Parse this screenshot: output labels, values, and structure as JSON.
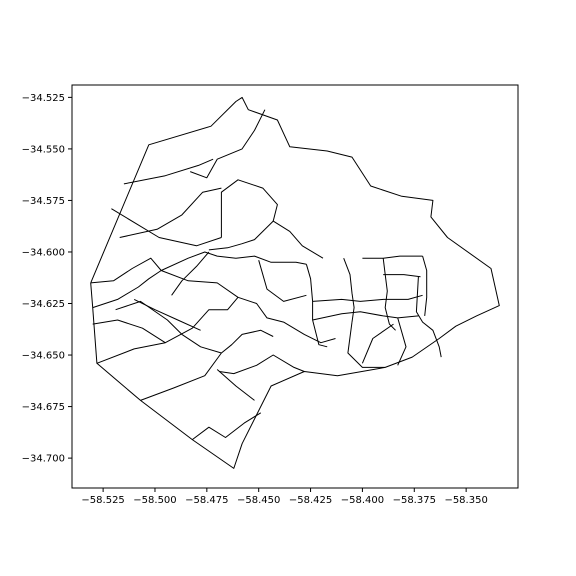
{
  "figure": {
    "background": "#ffffff",
    "stroke_color": "#000000"
  },
  "chart_data": {
    "type": "map",
    "title": "",
    "xlabel": "",
    "ylabel": "",
    "xlim": [
      -58.54,
      -58.325
    ],
    "ylim": [
      -34.7145,
      -34.519
    ],
    "grid": false,
    "x_ticks": [
      {
        "value": -58.525,
        "label": "−58.525"
      },
      {
        "value": -58.5,
        "label": "−58.500"
      },
      {
        "value": -58.475,
        "label": "−58.475"
      },
      {
        "value": -58.45,
        "label": "−58.450"
      },
      {
        "value": -58.425,
        "label": "−58.425"
      },
      {
        "value": -58.4,
        "label": "−58.400"
      },
      {
        "value": -58.375,
        "label": "−58.375"
      },
      {
        "value": -58.35,
        "label": "−58.350"
      }
    ],
    "y_ticks": [
      {
        "value": -34.525,
        "label": "−34.525"
      },
      {
        "value": -34.55,
        "label": "−34.550"
      },
      {
        "value": -34.575,
        "label": "−34.575"
      },
      {
        "value": -34.6,
        "label": "−34.600"
      },
      {
        "value": -34.625,
        "label": "−34.625"
      },
      {
        "value": -34.65,
        "label": "−34.650"
      },
      {
        "value": -34.675,
        "label": "−34.675"
      },
      {
        "value": -34.7,
        "label": "−34.700"
      }
    ],
    "outline": [
      [
        -58.531,
        -34.615
      ],
      [
        -58.503,
        -34.548
      ],
      [
        -58.473,
        -34.539
      ],
      [
        -58.461,
        -34.527
      ],
      [
        -58.458,
        -34.525
      ],
      [
        -58.455,
        -34.531
      ],
      [
        -58.441,
        -34.536
      ],
      [
        -58.435,
        -34.549
      ],
      [
        -58.417,
        -34.551
      ],
      [
        -58.405,
        -34.554
      ],
      [
        -58.396,
        -34.568
      ],
      [
        -58.381,
        -34.573
      ],
      [
        -58.366,
        -34.575
      ],
      [
        -58.367,
        -34.583
      ],
      [
        -58.359,
        -34.593
      ],
      [
        -58.338,
        -34.608
      ],
      [
        -58.334,
        -34.626
      ],
      [
        -58.345,
        -34.631
      ],
      [
        -58.355,
        -34.636
      ],
      [
        -58.363,
        -34.642
      ],
      [
        -58.376,
        -34.651
      ],
      [
        -58.389,
        -34.656
      ],
      [
        -58.412,
        -34.66
      ],
      [
        -58.428,
        -34.658
      ],
      [
        -58.444,
        -34.665
      ],
      [
        -58.458,
        -34.693
      ],
      [
        -58.462,
        -34.705
      ],
      [
        -58.482,
        -34.691
      ],
      [
        -58.507,
        -34.672
      ],
      [
        -58.528,
        -34.654
      ],
      [
        -58.53,
        -34.627
      ],
      [
        -58.531,
        -34.615
      ]
    ],
    "boundaries": [
      [
        [
          -58.483,
          -34.561
        ],
        [
          -58.475,
          -34.564
        ],
        [
          -58.47,
          -34.555
        ],
        [
          -58.458,
          -34.55
        ],
        [
          -58.452,
          -34.541
        ],
        [
          -58.447,
          -34.531
        ]
      ],
      [
        [
          -58.515,
          -34.567
        ],
        [
          -58.495,
          -34.563
        ],
        [
          -58.479,
          -34.558
        ],
        [
          -58.472,
          -34.555
        ]
      ],
      [
        [
          -58.521,
          -34.579
        ],
        [
          -58.498,
          -34.593
        ],
        [
          -58.48,
          -34.597
        ],
        [
          -58.468,
          -34.593
        ]
      ],
      [
        [
          -58.517,
          -34.593
        ],
        [
          -58.499,
          -34.589
        ],
        [
          -58.487,
          -34.582
        ],
        [
          -58.477,
          -34.571
        ],
        [
          -58.468,
          -34.569
        ]
      ],
      [
        [
          -58.468,
          -34.593
        ],
        [
          -58.468,
          -34.571
        ],
        [
          -58.46,
          -34.565
        ],
        [
          -58.448,
          -34.569
        ],
        [
          -58.441,
          -34.577
        ],
        [
          -58.443,
          -34.585
        ]
      ],
      [
        [
          -58.474,
          -34.599
        ],
        [
          -58.465,
          -34.598
        ],
        [
          -58.458,
          -34.596
        ],
        [
          -58.452,
          -34.594
        ],
        [
          -58.443,
          -34.585
        ],
        [
          -58.435,
          -34.59
        ],
        [
          -58.429,
          -34.597
        ],
        [
          -58.419,
          -34.603
        ]
      ],
      [
        [
          -58.497,
          -34.609
        ],
        [
          -58.484,
          -34.603
        ],
        [
          -58.476,
          -34.6
        ],
        [
          -58.47,
          -34.602
        ],
        [
          -58.461,
          -34.603
        ],
        [
          -58.452,
          -34.602
        ],
        [
          -58.444,
          -34.605
        ],
        [
          -58.432,
          -34.605
        ],
        [
          -58.427,
          -34.606
        ]
      ],
      [
        [
          -58.531,
          -34.615
        ],
        [
          -58.52,
          -34.614
        ],
        [
          -58.511,
          -34.608
        ],
        [
          -58.502,
          -34.603
        ],
        [
          -58.497,
          -34.609
        ]
      ],
      [
        [
          -58.53,
          -34.627
        ],
        [
          -58.518,
          -34.623
        ],
        [
          -58.508,
          -34.617
        ],
        [
          -58.503,
          -34.613
        ],
        [
          -58.497,
          -34.609
        ],
        [
          -58.484,
          -34.614
        ],
        [
          -58.47,
          -34.615
        ],
        [
          -58.46,
          -34.622
        ]
      ],
      [
        [
          -58.53,
          -34.635
        ],
        [
          -58.518,
          -34.633
        ],
        [
          -58.506,
          -34.637
        ],
        [
          -58.495,
          -34.644
        ]
      ],
      [
        [
          -58.528,
          -34.654
        ],
        [
          -58.51,
          -34.647
        ],
        [
          -58.495,
          -34.644
        ],
        [
          -58.482,
          -34.637
        ],
        [
          -58.474,
          -34.628
        ],
        [
          -58.465,
          -34.628
        ],
        [
          -58.46,
          -34.622
        ]
      ],
      [
        [
          -58.519,
          -34.628
        ],
        [
          -58.507,
          -34.624
        ],
        [
          -58.494,
          -34.633
        ],
        [
          -58.487,
          -34.64
        ],
        [
          -58.478,
          -34.646
        ],
        [
          -58.468,
          -34.649
        ]
      ],
      [
        [
          -58.51,
          -34.623
        ],
        [
          -58.5,
          -34.628
        ],
        [
          -58.489,
          -34.633
        ],
        [
          -58.478,
          -34.638
        ]
      ],
      [
        [
          -58.46,
          -34.622
        ],
        [
          -58.451,
          -34.625
        ],
        [
          -58.446,
          -34.632
        ],
        [
          -58.438,
          -34.634
        ],
        [
          -58.428,
          -34.64
        ],
        [
          -58.42,
          -34.644
        ],
        [
          -58.413,
          -34.642
        ]
      ],
      [
        [
          -58.474,
          -34.6
        ],
        [
          -58.48,
          -34.607
        ],
        [
          -58.487,
          -34.614
        ],
        [
          -58.492,
          -34.621
        ]
      ],
      [
        [
          -58.507,
          -34.672
        ],
        [
          -58.491,
          -34.666
        ],
        [
          -58.476,
          -34.66
        ],
        [
          -58.468,
          -34.649
        ],
        [
          -58.463,
          -34.645
        ],
        [
          -58.458,
          -34.64
        ],
        [
          -58.449,
          -34.638
        ],
        [
          -58.443,
          -34.641
        ]
      ],
      [
        [
          -58.469,
          -34.658
        ],
        [
          -58.462,
          -34.659
        ],
        [
          -58.451,
          -34.655
        ],
        [
          -58.443,
          -34.65
        ],
        [
          -58.433,
          -34.656
        ],
        [
          -58.428,
          -34.658
        ]
      ],
      [
        [
          -58.482,
          -34.691
        ],
        [
          -58.474,
          -34.685
        ],
        [
          -58.466,
          -34.69
        ],
        [
          -58.457,
          -34.683
        ],
        [
          -58.449,
          -34.678
        ]
      ],
      [
        [
          -58.452,
          -34.672
        ],
        [
          -58.461,
          -34.665
        ],
        [
          -58.47,
          -34.657
        ]
      ],
      [
        [
          -58.45,
          -34.604
        ],
        [
          -58.446,
          -34.618
        ],
        [
          -58.438,
          -34.624
        ],
        [
          -58.427,
          -34.621
        ]
      ],
      [
        [
          -58.427,
          -34.606
        ],
        [
          -58.425,
          -34.613
        ],
        [
          -58.424,
          -34.624
        ],
        [
          -58.424,
          -34.633
        ],
        [
          -58.421,
          -34.645
        ],
        [
          -58.417,
          -34.646
        ]
      ],
      [
        [
          -58.424,
          -34.633
        ],
        [
          -58.41,
          -34.63
        ],
        [
          -58.401,
          -34.629
        ],
        [
          -58.39,
          -34.631
        ],
        [
          -58.383,
          -34.632
        ],
        [
          -58.373,
          -34.631
        ]
      ],
      [
        [
          -58.424,
          -34.624
        ],
        [
          -58.41,
          -34.623
        ],
        [
          -58.401,
          -34.624
        ],
        [
          -58.39,
          -34.623
        ],
        [
          -58.378,
          -34.623
        ],
        [
          -58.371,
          -34.621
        ]
      ],
      [
        [
          -58.409,
          -34.603
        ],
        [
          -58.406,
          -34.611
        ],
        [
          -58.405,
          -34.62
        ],
        [
          -58.404,
          -34.627
        ],
        [
          -58.405,
          -34.634
        ]
      ],
      [
        [
          -58.405,
          -34.634
        ],
        [
          -58.407,
          -34.649
        ],
        [
          -58.4,
          -34.656
        ],
        [
          -58.389,
          -34.656
        ]
      ],
      [
        [
          -58.383,
          -34.632
        ],
        [
          -58.379,
          -34.646
        ],
        [
          -58.383,
          -34.655
        ]
      ],
      [
        [
          -58.4,
          -34.654
        ],
        [
          -58.395,
          -34.642
        ],
        [
          -58.385,
          -34.635
        ]
      ],
      [
        [
          -58.39,
          -34.603
        ],
        [
          -58.389,
          -34.611
        ],
        [
          -58.388,
          -34.619
        ],
        [
          -58.389,
          -34.627
        ],
        [
          -58.387,
          -34.635
        ],
        [
          -58.384,
          -34.638
        ]
      ],
      [
        [
          -58.373,
          -34.612
        ],
        [
          -58.374,
          -34.629
        ],
        [
          -58.371,
          -34.634
        ],
        [
          -58.366,
          -34.638
        ],
        [
          -58.363,
          -34.646
        ],
        [
          -58.362,
          -34.651
        ]
      ],
      [
        [
          -58.39,
          -34.611
        ],
        [
          -58.38,
          -34.611
        ],
        [
          -58.372,
          -34.612
        ]
      ],
      [
        [
          -58.4,
          -34.603
        ],
        [
          -58.39,
          -34.603
        ],
        [
          -58.382,
          -34.602
        ],
        [
          -58.371,
          -34.602
        ]
      ],
      [
        [
          -58.371,
          -34.602
        ],
        [
          -58.369,
          -34.609
        ],
        [
          -58.369,
          -34.622
        ],
        [
          -58.37,
          -34.631
        ]
      ]
    ]
  }
}
